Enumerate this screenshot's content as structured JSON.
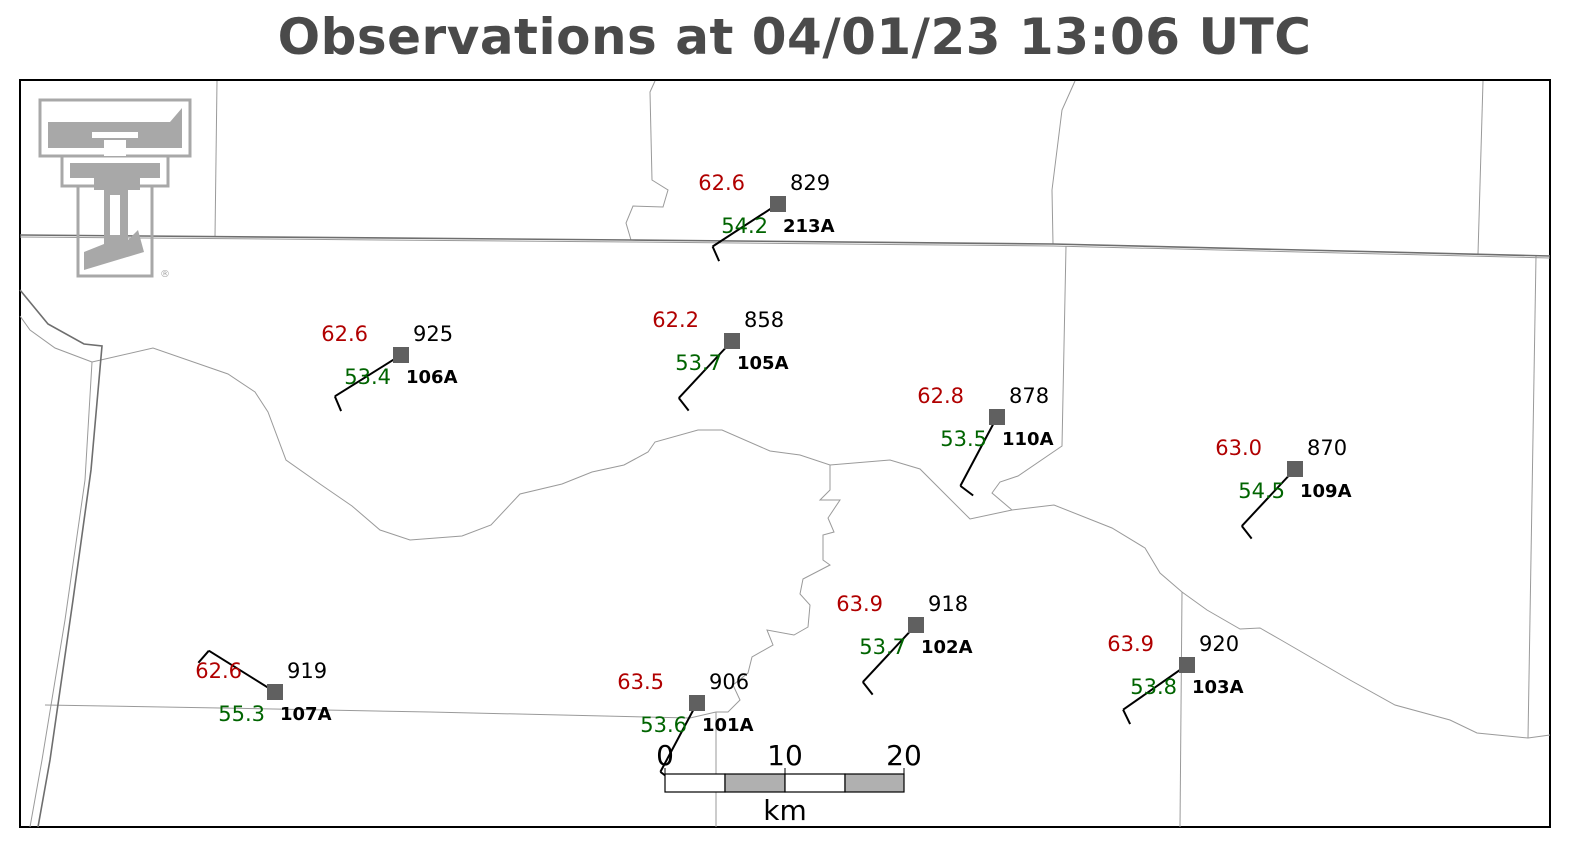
{
  "title": "Observations at 04/01/23 13:06 UTC",
  "colors": {
    "temperature": "#b00000",
    "dewpoint": "#006400",
    "station_marker": "#606060",
    "boundaries": "#9a9a9a",
    "title": "#4a4a4a",
    "logo": "#a8a8a8"
  },
  "logo": {
    "icon": "double-t-logo",
    "registered_mark": "®"
  },
  "scale_bar": {
    "ticks": [
      "0",
      "10",
      "20"
    ],
    "unit": "km"
  },
  "stations": [
    {
      "id": "213A",
      "temp": "62.6",
      "dewpoint": "54.2",
      "pressure": "829",
      "wind_to_deg": 237,
      "barbs": 1
    },
    {
      "id": "106A",
      "temp": "62.6",
      "dewpoint": "53.4",
      "pressure": "925",
      "wind_to_deg": 238,
      "barbs": 1
    },
    {
      "id": "105A",
      "temp": "62.2",
      "dewpoint": "53.7",
      "pressure": "858",
      "wind_to_deg": 223,
      "barbs": 1
    },
    {
      "id": "110A",
      "temp": "62.8",
      "dewpoint": "53.5",
      "pressure": "878",
      "wind_to_deg": 208,
      "barbs": 1
    },
    {
      "id": "109A",
      "temp": "63.0",
      "dewpoint": "54.5",
      "pressure": "870",
      "wind_to_deg": 223,
      "barbs": 1
    },
    {
      "id": "107A",
      "temp": "62.6",
      "dewpoint": "55.3",
      "pressure": "919",
      "wind_to_deg": 302,
      "barbs": 1
    },
    {
      "id": "101A",
      "temp": "63.5",
      "dewpoint": "53.6",
      "pressure": "906",
      "wind_to_deg": 208,
      "barbs": 1
    },
    {
      "id": "102A",
      "temp": "63.9",
      "dewpoint": "53.7",
      "pressure": "918",
      "wind_to_deg": 223,
      "barbs": 1
    },
    {
      "id": "103A",
      "temp": "63.9",
      "dewpoint": "53.8",
      "pressure": "920",
      "wind_to_deg": 235,
      "barbs": 1
    }
  ]
}
